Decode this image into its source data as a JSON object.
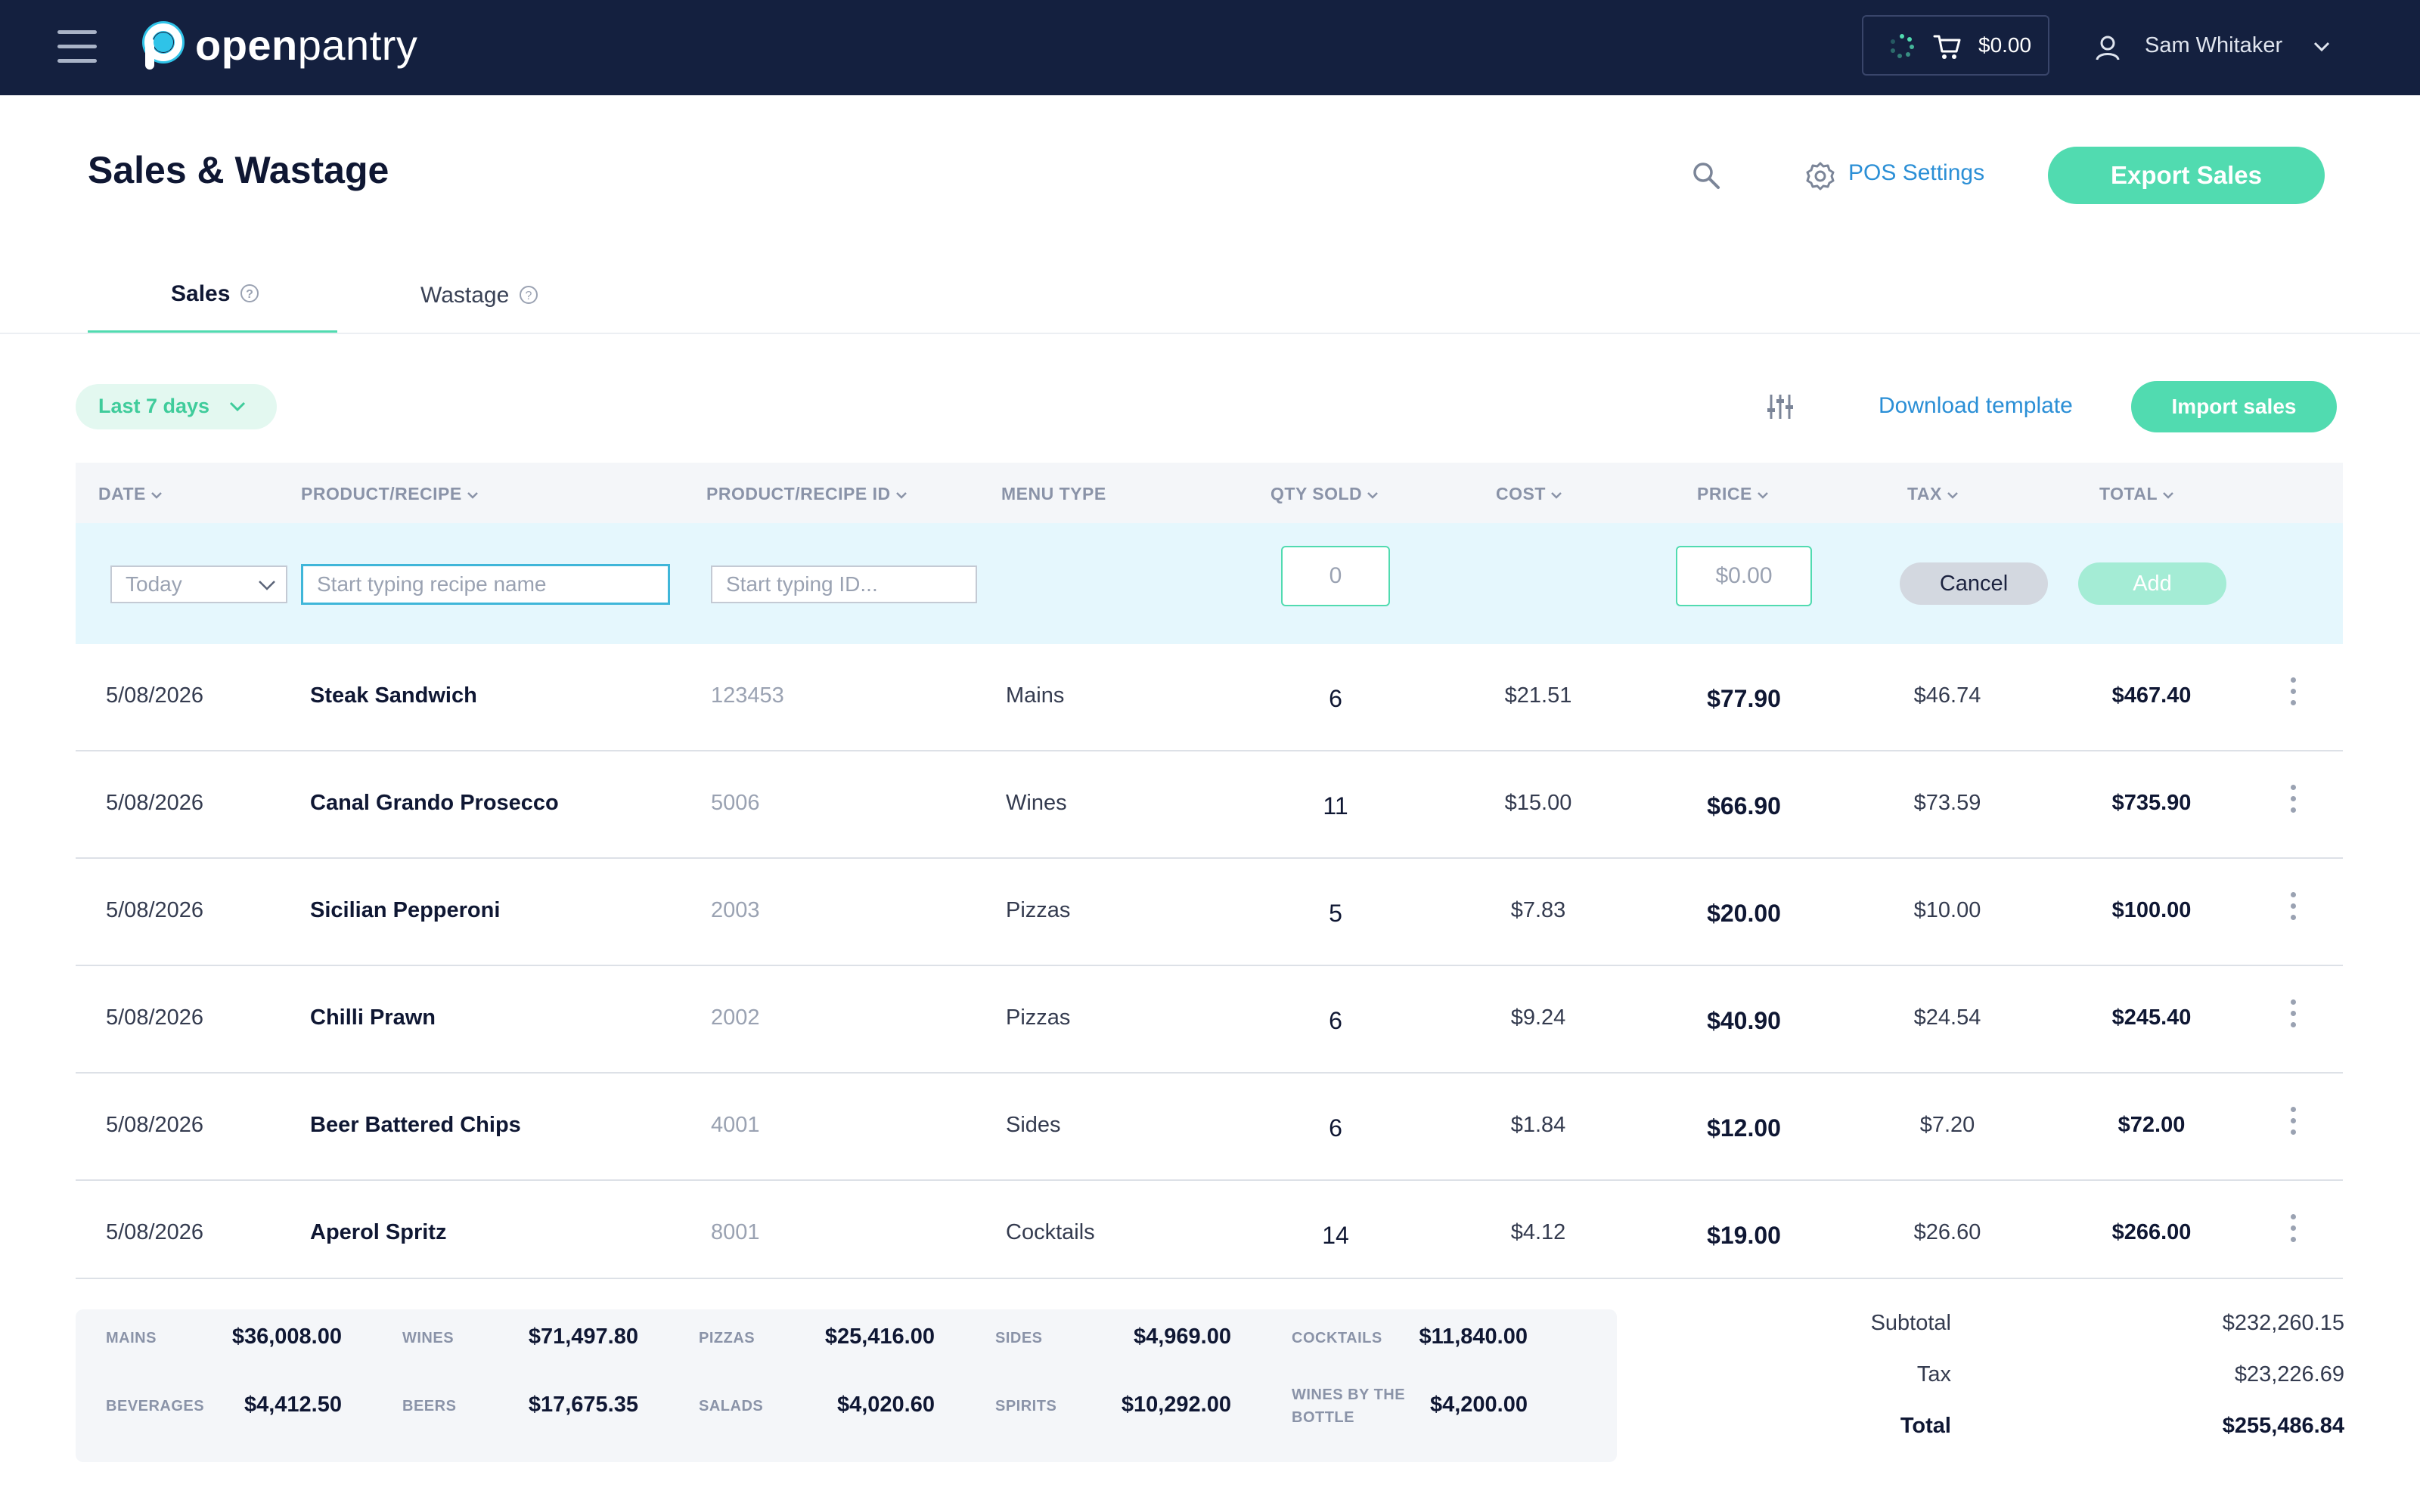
{
  "app": {
    "logo_bold": "open",
    "logo_light": "pantry"
  },
  "topbar": {
    "cart_total": "$0.00",
    "user_name": "Sam Whitaker"
  },
  "header": {
    "title": "Sales & Wastage",
    "pos_settings": "POS Settings",
    "export": "Export Sales"
  },
  "tabs": [
    {
      "label": "Sales",
      "active": true
    },
    {
      "label": "Wastage",
      "active": false
    }
  ],
  "filters": {
    "period": "Last 7 days",
    "download": "Download template",
    "import": "Import sales"
  },
  "columns": {
    "date": "DATE",
    "product": "PRODUCT/RECIPE",
    "product_id": "PRODUCT/RECIPE ID",
    "menu_type": "MENU TYPE",
    "qty": "QTY SOLD",
    "cost": "COST",
    "price": "PRICE",
    "tax": "TAX",
    "total": "TOTAL"
  },
  "add_row": {
    "date_value": "Today",
    "recipe_placeholder": "Start typing recipe name",
    "id_placeholder": "Start typing ID...",
    "qty_placeholder": "0",
    "price_placeholder": "$0.00",
    "cancel": "Cancel",
    "add": "Add"
  },
  "rows": [
    {
      "date": "5/08/2026",
      "name": "Steak Sandwich",
      "id": "123453",
      "menu": "Mains",
      "qty": "6",
      "cost": "$21.51",
      "price": "$77.90",
      "tax": "$46.74",
      "total": "$467.40"
    },
    {
      "date": "5/08/2026",
      "name": "Canal Grando Prosecco",
      "id": "5006",
      "menu": "Wines",
      "qty": "11",
      "cost": "$15.00",
      "price": "$66.90",
      "tax": "$73.59",
      "total": "$735.90"
    },
    {
      "date": "5/08/2026",
      "name": "Sicilian Pepperoni",
      "id": "2003",
      "menu": "Pizzas",
      "qty": "5",
      "cost": "$7.83",
      "price": "$20.00",
      "tax": "$10.00",
      "total": "$100.00"
    },
    {
      "date": "5/08/2026",
      "name": "Chilli Prawn",
      "id": "2002",
      "menu": "Pizzas",
      "qty": "6",
      "cost": "$9.24",
      "price": "$40.90",
      "tax": "$24.54",
      "total": "$245.40"
    },
    {
      "date": "5/08/2026",
      "name": "Beer Battered Chips",
      "id": "4001",
      "menu": "Sides",
      "qty": "6",
      "cost": "$1.84",
      "price": "$12.00",
      "tax": "$7.20",
      "total": "$72.00"
    },
    {
      "date": "5/08/2026",
      "name": "Aperol Spritz",
      "id": "8001",
      "menu": "Cocktails",
      "qty": "14",
      "cost": "$4.12",
      "price": "$19.00",
      "tax": "$26.60",
      "total": "$266.00"
    }
  ],
  "summary": [
    {
      "label": "MAINS",
      "value": "$36,008.00"
    },
    {
      "label": "WINES",
      "value": "$71,497.80"
    },
    {
      "label": "PIZZAS",
      "value": "$25,416.00"
    },
    {
      "label": "SIDES",
      "value": "$4,969.00"
    },
    {
      "label": "COCKTAILS",
      "value": "$11,840.00"
    },
    {
      "label": "BEVERAGES",
      "value": "$4,412.50"
    },
    {
      "label": "BEERS",
      "value": "$17,675.35"
    },
    {
      "label": "SALADS",
      "value": "$4,020.60"
    },
    {
      "label": "SPIRITS",
      "value": "$10,292.00"
    },
    {
      "label": "WINES BY THE BOTTLE",
      "value": "$4,200.00"
    }
  ],
  "totals": {
    "subtotal_label": "Subtotal",
    "subtotal": "$232,260.15",
    "tax_label": "Tax",
    "tax": "$23,226.69",
    "total_label": "Total",
    "total": "$255,486.84"
  },
  "icons": {
    "menu": "hamburger-icon",
    "cart": "cart-icon",
    "user": "user-icon",
    "search": "search-icon",
    "settings": "gear-icon",
    "filter": "sliders-icon",
    "help": "help-icon",
    "more": "kebab-icon"
  },
  "colors": {
    "topbar": "#14203f",
    "accent": "#51dbb0",
    "link": "#2b8fd6",
    "add_row_bg": "#e5f7fd"
  }
}
